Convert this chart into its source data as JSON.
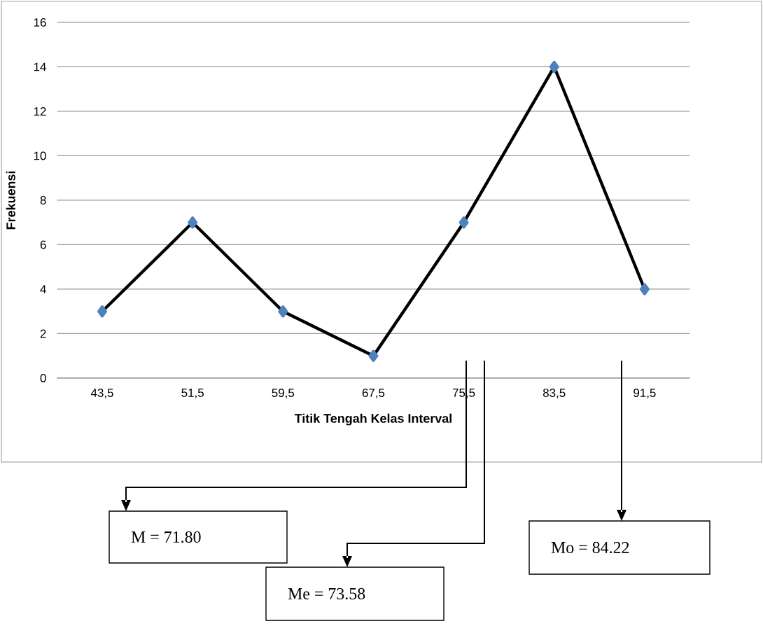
{
  "chart_data": {
    "type": "line",
    "xlabel": "Titik Tengah Kelas Interval",
    "ylabel": "Frekuensi",
    "categories": [
      "43,5",
      "51,5",
      "59,5",
      "67,5",
      "75,5",
      "83,5",
      "91,5"
    ],
    "series": [
      {
        "color": "#000000",
        "values": [
          3,
          7,
          3,
          1,
          7,
          14,
          4
        ]
      }
    ],
    "ylim": [
      0,
      16
    ],
    "yticks": [
      0,
      2,
      4,
      6,
      8,
      10,
      12,
      14,
      16
    ],
    "grid": "y",
    "marker": "diamond",
    "line_style": "solid",
    "annotations": [
      "M = 71.80",
      "Me = 73.58",
      "Mo = 84.22"
    ]
  }
}
